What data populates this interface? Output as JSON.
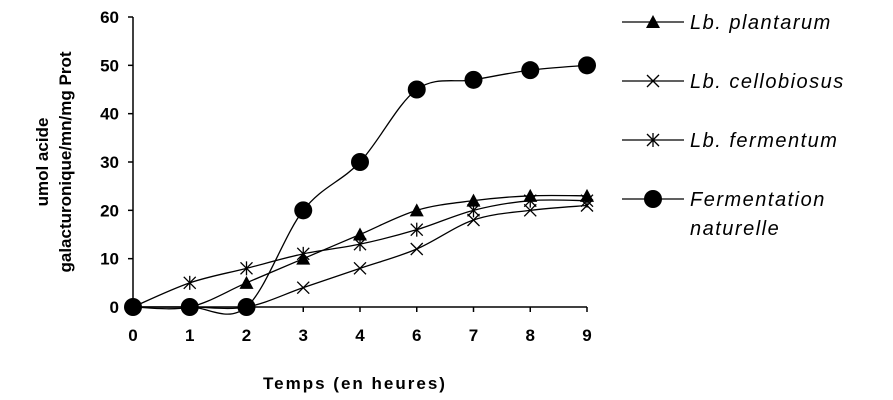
{
  "chart_data": {
    "type": "line",
    "xlabel": "Temps (en heures)",
    "ylabel_lines": [
      "umol acide",
      "galacturonique/mn/mg Prot"
    ],
    "x_ticks": [
      "0",
      "1",
      "2",
      "3",
      "4",
      "6",
      "7",
      "8",
      "9"
    ],
    "y_ticks": [
      "0",
      "10",
      "20",
      "30",
      "40",
      "50",
      "60"
    ],
    "ylim": [
      0,
      60
    ],
    "grid": false,
    "legend_position": "right",
    "series": [
      {
        "name": "Lb. plantarum",
        "marker": "triangle",
        "values": [
          0,
          0,
          5,
          10,
          15,
          20,
          22,
          23,
          23
        ]
      },
      {
        "name": "Lb. cellobiosus",
        "marker": "x",
        "values": [
          0,
          0,
          0,
          4,
          8,
          12,
          18,
          20,
          21
        ]
      },
      {
        "name": "Lb. fermentum",
        "marker": "asterisk",
        "values": [
          0,
          5,
          8,
          11,
          13,
          16,
          20,
          22,
          22
        ]
      },
      {
        "name_lines": [
          "Fermentation",
          "naturelle"
        ],
        "marker": "circle",
        "values": [
          0,
          0,
          0,
          20,
          30,
          45,
          47,
          49,
          50
        ]
      }
    ]
  }
}
